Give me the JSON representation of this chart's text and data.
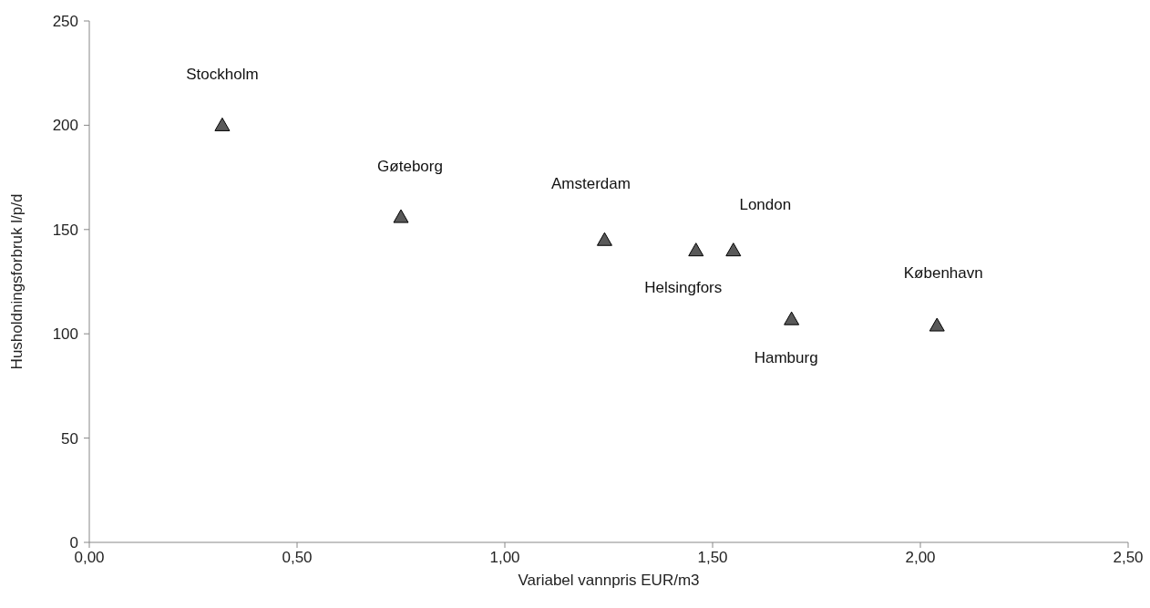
{
  "chart_data": {
    "type": "scatter",
    "xlabel": "Variabel vannpris EUR/m3",
    "ylabel": "Husholdningsforbruk l/p/d",
    "x": [
      0.32,
      0.75,
      1.24,
      1.46,
      1.55,
      1.69,
      2.04
    ],
    "values": [
      200,
      156,
      145,
      140,
      140,
      107,
      104
    ],
    "color": "#595959",
    "marker": "triangle",
    "grid": false,
    "xlim": [
      0,
      2.5
    ],
    "ylim": [
      0,
      250
    ],
    "xticks": [
      {
        "value": 0,
        "label": "0,00"
      },
      {
        "value": 0.5,
        "label": "0,50"
      },
      {
        "value": 1,
        "label": "1,00"
      },
      {
        "value": 1.5,
        "label": "1,50"
      },
      {
        "value": 2,
        "label": "2,00"
      },
      {
        "value": 2.5,
        "label": "2,50"
      }
    ],
    "yticks": [
      0,
      50,
      100,
      150,
      200,
      250
    ],
    "annotations": [
      "Stockholm",
      "Gøteborg",
      "Amsterdam",
      "Helsingfors",
      "London",
      "Hamburg",
      "København"
    ]
  }
}
